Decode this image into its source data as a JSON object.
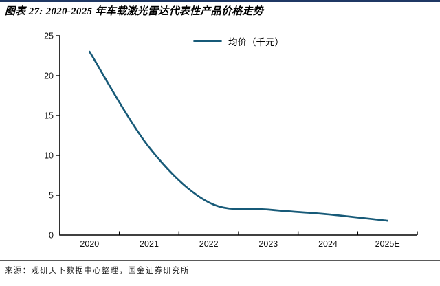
{
  "header": {
    "title": "图表 27: 2020-2025 年车载激光雷达代表性产品价格走势"
  },
  "footer": {
    "source": "来源：观研天下数据中心整理，国金证券研究所"
  },
  "colors": {
    "top_border": "#1F3864",
    "title_rule": "#2F6F80",
    "footer_rule": "#5A5A5A",
    "axis": "#000000",
    "line": "#175A78"
  },
  "chart_data": {
    "type": "line",
    "title": "",
    "categories": [
      "2020",
      "2021",
      "2022",
      "2023",
      "2024",
      "2025E"
    ],
    "series": [
      {
        "name": "均价（千元）",
        "values": [
          23,
          11,
          4.1,
          3.2,
          2.6,
          1.8
        ],
        "color": "#175A78"
      }
    ],
    "legend": {
      "label": "均价（千元）",
      "position": "top-center"
    },
    "xlabel": "",
    "ylabel": "",
    "ylim": [
      0,
      25
    ],
    "yticks": [
      0,
      5,
      10,
      15,
      20,
      25
    ],
    "grid": false,
    "smooth": true,
    "tick_style": "x-ticks-inside-between-categories, y-ticks-outside"
  }
}
